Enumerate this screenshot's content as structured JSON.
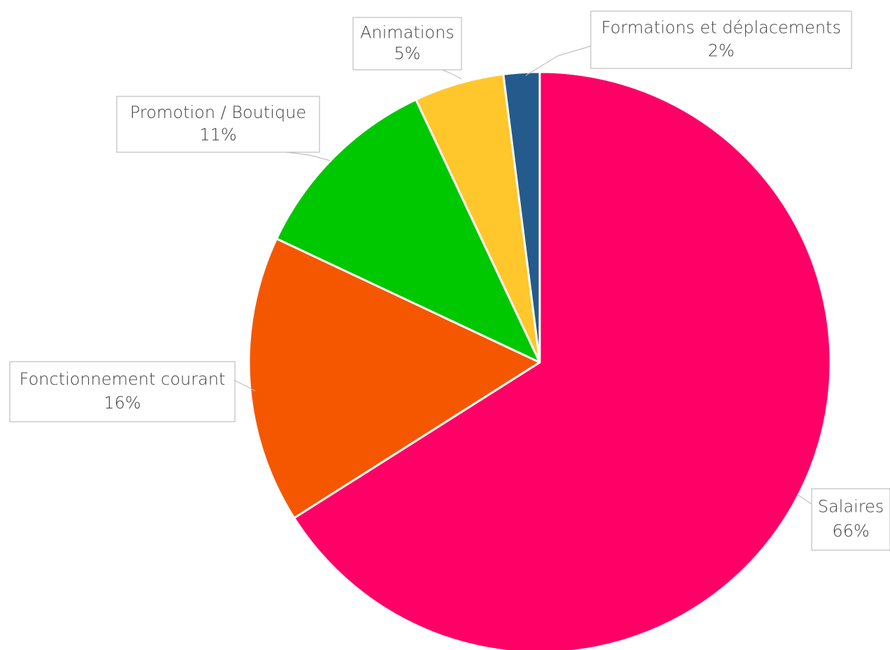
{
  "chart_data": {
    "type": "pie",
    "title": "",
    "start": "12 o'clock, clockwise",
    "legend": "none (data labels with callouts)",
    "slices": [
      {
        "label": "Salaires",
        "value": 66,
        "value_label": "66%",
        "color": "#FF0066"
      },
      {
        "label": "Fonctionnement courant",
        "value": 16,
        "value_label": "16%",
        "color": "#F55700"
      },
      {
        "label": "Promotion / Boutique",
        "value": 11,
        "value_label": "11%",
        "color": "#00C800"
      },
      {
        "label": "Animations",
        "value": 5,
        "value_label": "5%",
        "color": "#FFC72C"
      },
      {
        "label": "Formations et déplacements",
        "value": 2,
        "value_label": "2%",
        "color": "#245B8C"
      }
    ]
  }
}
